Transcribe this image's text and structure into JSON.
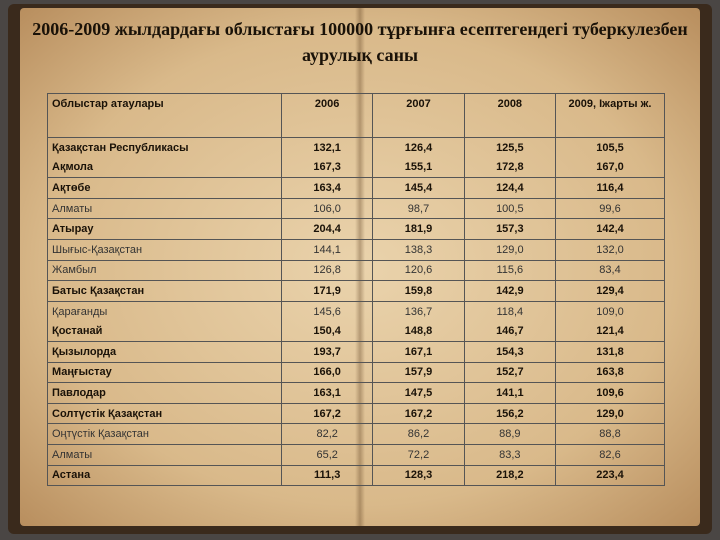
{
  "title": "2006-2009  жылдардағы облыстағы 100000 тұрғынға есептегендегі туберкулезбен аурулық саны",
  "table": {
    "header": [
      "Облыстар атаулары",
      "2006",
      "2007",
      "2008",
      "2009, Іжарты ж."
    ],
    "rows": [
      [
        "Қазақстан Республикасы",
        "132,1",
        "126,4",
        "125,5",
        "105,5"
      ],
      [
        "Ақмола",
        "167,3",
        "155,1",
        "172,8",
        "167,0"
      ],
      [
        "Ақтөбе",
        "163,4",
        "145,4",
        "124,4",
        "116,4"
      ],
      [
        "Алматы",
        "106,0",
        "98,7",
        "100,5",
        "99,6"
      ],
      [
        "Атырау",
        "204,4",
        "181,9",
        "157,3",
        "142,4"
      ],
      [
        "Шығыс-Қазақстан",
        "144,1",
        "138,3",
        "129,0",
        "132,0"
      ],
      [
        "Жамбыл",
        "126,8",
        "120,6",
        "115,6",
        "83,4"
      ],
      [
        "Батыс Қазақстан",
        "171,9",
        "159,8",
        "142,9",
        "129,4"
      ],
      [
        "Қарағанды",
        "145,6",
        "136,7",
        "118,4",
        "109,0"
      ],
      [
        "Қостанай",
        "150,4",
        "148,8",
        "146,7",
        "121,4"
      ],
      [
        "Қызылорда",
        "193,7",
        "167,1",
        "154,3",
        "131,8"
      ],
      [
        "Маңғыстау",
        "166,0",
        "157,9",
        "152,7",
        "163,8"
      ],
      [
        "Павлодар",
        "163,1",
        "147,5",
        "141,1",
        "109,6"
      ],
      [
        "Солтүстік Қазақстан",
        "167,2",
        "167,2",
        "156,2",
        "129,0"
      ],
      [
        "Оңтүстік Қазақстан",
        "82,2",
        "86,2",
        "88,9",
        "88,8"
      ],
      [
        "Алматы",
        "65,2",
        "72,2",
        "83,3",
        "82,6"
      ],
      [
        "Астана",
        "111,3",
        "128,3",
        "218,2",
        "223,4"
      ]
    ]
  }
}
